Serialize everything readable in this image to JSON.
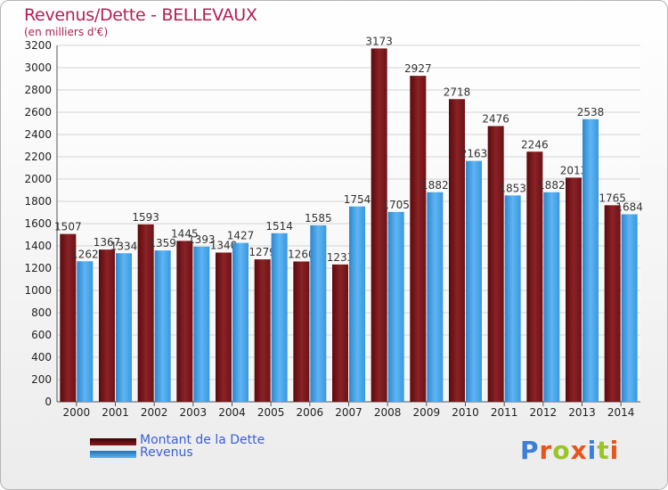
{
  "title": "Revenus/Dette - BELLEVAUX",
  "subtitle": "(en milliers d'€)",
  "logo_text": "Proxiti",
  "colors": {
    "dette": "#7a1216",
    "revenus": "#3f9be0",
    "title": "#b5204f",
    "legend_text": "#3a5fd8"
  },
  "legend": [
    {
      "label": "Montant de la Dette",
      "color": "#6b0f13"
    },
    {
      "label": "Revenus",
      "color": "#3f9be0"
    }
  ],
  "chart_data": {
    "type": "bar",
    "categories": [
      "2000",
      "2001",
      "2002",
      "2003",
      "2004",
      "2005",
      "2006",
      "2007",
      "2008",
      "2009",
      "2010",
      "2011",
      "2012",
      "2013",
      "2014"
    ],
    "series": [
      {
        "name": "Montant de la Dette",
        "values": [
          1507,
          1367,
          1593,
          1445,
          1340,
          1279,
          1260,
          1233,
          3173,
          2927,
          2718,
          2476,
          2246,
          2013,
          1765
        ]
      },
      {
        "name": "Revenus",
        "values": [
          1262,
          1334,
          1359,
          1393,
          1427,
          1514,
          1585,
          1754,
          1705,
          1882,
          2163,
          1853,
          1882,
          2538,
          1684
        ]
      }
    ],
    "data_labels": [
      [
        "1507",
        "1367",
        "1593",
        "1445",
        "1340",
        "1279",
        "1260",
        "1233",
        "3173",
        "2927",
        "2718",
        "2476",
        "2246",
        "2013",
        "1765"
      ],
      [
        "1262",
        "1334",
        "1359",
        "1393",
        "1427",
        "1514",
        "1585",
        "1754",
        "1705",
        "1882",
        "2163",
        "1853",
        "1882",
        "2538",
        "1684"
      ]
    ],
    "ylim": [
      0,
      3200
    ],
    "yticks": [
      0,
      200,
      400,
      600,
      800,
      1000,
      1200,
      1400,
      1600,
      1800,
      2000,
      2200,
      2400,
      2600,
      2800,
      3000,
      3200
    ],
    "grid": true
  }
}
